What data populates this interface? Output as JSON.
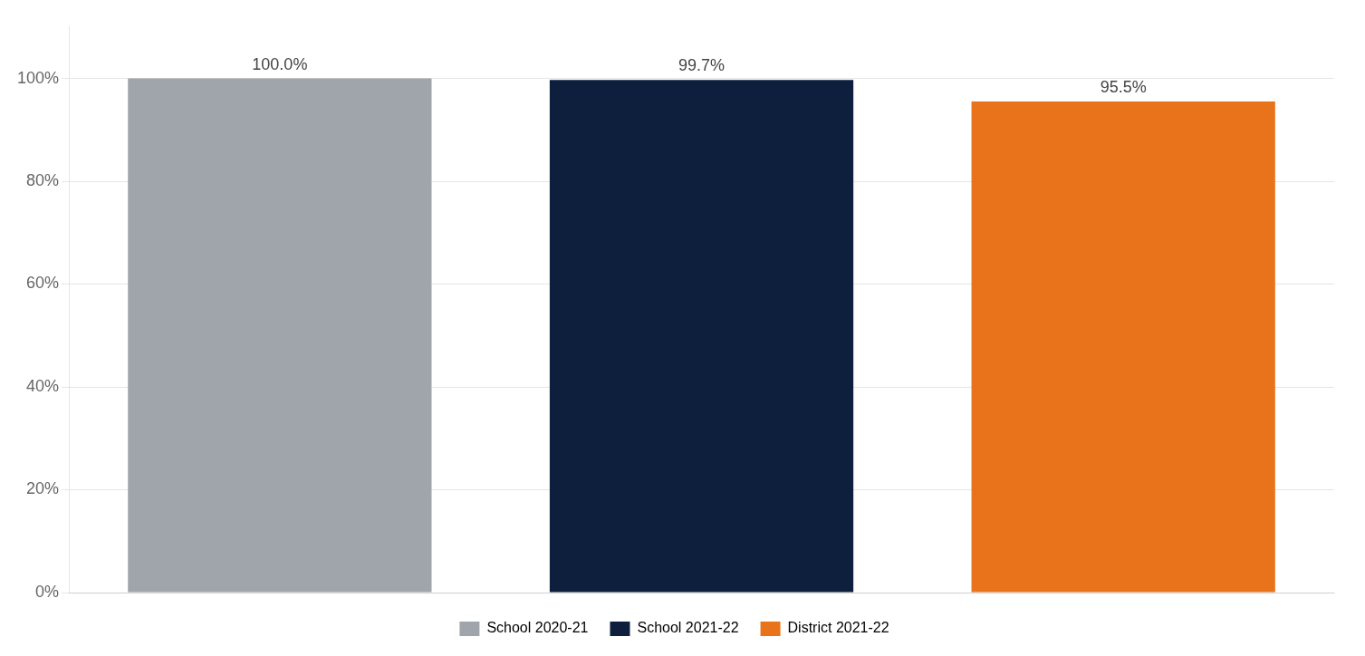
{
  "chart_data": {
    "type": "bar",
    "categories": [
      "School 2020-21",
      "School 2021-22",
      "District 2021-22"
    ],
    "values": [
      100.0,
      99.7,
      95.5
    ],
    "value_labels": [
      "100.0%",
      "99.7%",
      "95.5%"
    ],
    "colors": [
      "#a0a5ac",
      "#0d1f3c",
      "#e8731a"
    ],
    "ylim": [
      0,
      110
    ],
    "yticks": [
      {
        "value": 0,
        "label": "0%"
      },
      {
        "value": 20,
        "label": "20%"
      },
      {
        "value": 40,
        "label": "40%"
      },
      {
        "value": 60,
        "label": "60%"
      },
      {
        "value": 80,
        "label": "80%"
      },
      {
        "value": 100,
        "label": "100%"
      }
    ],
    "grid": true,
    "legend": "bottom",
    "data_labels": true,
    "tick_labels": "y"
  }
}
